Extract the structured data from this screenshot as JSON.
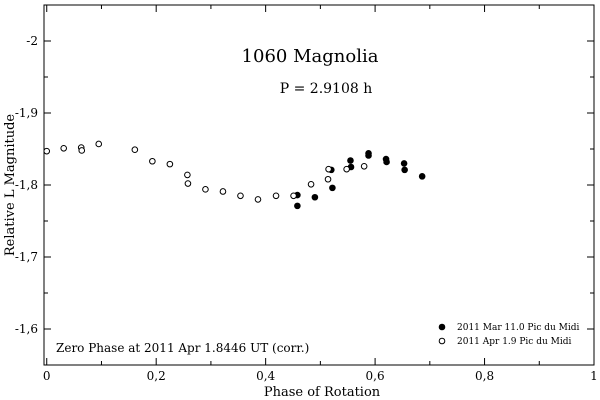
{
  "chart_data": {
    "type": "scatter",
    "title": "1060 Magnolia",
    "subtitle": "P = 2.9108 h",
    "xlabel": "Phase of Rotation",
    "ylabel": "Relative L Magnitude",
    "xlim": [
      -0.005,
      1.0
    ],
    "ylim": [
      -2.05,
      -1.55
    ],
    "y_inverted": true,
    "x_ticks": [
      0,
      0.2,
      0.4,
      0.6,
      0.8,
      1
    ],
    "x_tick_labels": [
      "0",
      "0,2",
      "0,4",
      "0,6",
      "0,8",
      "1"
    ],
    "y_ticks": [
      -2.0,
      -1.9,
      -1.8,
      -1.7,
      -1.6
    ],
    "y_tick_labels": [
      "-2",
      "-1,9",
      "-1,8",
      "-1,7",
      "-1,6"
    ],
    "annotation": "Zero Phase at 2011 Apr 1.8446 UT (corr.)",
    "legend_position": "bottom-right",
    "series": [
      {
        "name": "2011 Mar 11.0 Pic du Midi",
        "marker": "filled-circle",
        "points": [
          {
            "x": 0.458,
            "y": -1.786
          },
          {
            "x": 0.458,
            "y": -1.771
          },
          {
            "x": 0.49,
            "y": -1.783
          },
          {
            "x": 0.52,
            "y": -1.821
          },
          {
            "x": 0.522,
            "y": -1.796
          },
          {
            "x": 0.555,
            "y": -1.834
          },
          {
            "x": 0.556,
            "y": -1.825
          },
          {
            "x": 0.588,
            "y": -1.844
          },
          {
            "x": 0.588,
            "y": -1.841
          },
          {
            "x": 0.62,
            "y": -1.836
          },
          {
            "x": 0.621,
            "y": -1.832
          },
          {
            "x": 0.653,
            "y": -1.83
          },
          {
            "x": 0.654,
            "y": -1.821
          },
          {
            "x": 0.686,
            "y": -1.812
          }
        ]
      },
      {
        "name": "2011 Apr 1.9 Pic du Midi",
        "marker": "open-circle",
        "points": [
          {
            "x": 0.0,
            "y": -1.847
          },
          {
            "x": 0.031,
            "y": -1.851
          },
          {
            "x": 0.063,
            "y": -1.852
          },
          {
            "x": 0.064,
            "y": -1.848
          },
          {
            "x": 0.095,
            "y": -1.857
          },
          {
            "x": 0.161,
            "y": -1.849
          },
          {
            "x": 0.193,
            "y": -1.833
          },
          {
            "x": 0.225,
            "y": -1.829
          },
          {
            "x": 0.257,
            "y": -1.814
          },
          {
            "x": 0.258,
            "y": -1.802
          },
          {
            "x": 0.29,
            "y": -1.794
          },
          {
            "x": 0.322,
            "y": -1.791
          },
          {
            "x": 0.354,
            "y": -1.785
          },
          {
            "x": 0.386,
            "y": -1.78
          },
          {
            "x": 0.419,
            "y": -1.785
          },
          {
            "x": 0.451,
            "y": -1.785
          },
          {
            "x": 0.483,
            "y": -1.801
          },
          {
            "x": 0.514,
            "y": -1.808
          },
          {
            "x": 0.515,
            "y": -1.822
          },
          {
            "x": 0.548,
            "y": -1.822
          },
          {
            "x": 0.58,
            "y": -1.826
          }
        ]
      }
    ]
  }
}
